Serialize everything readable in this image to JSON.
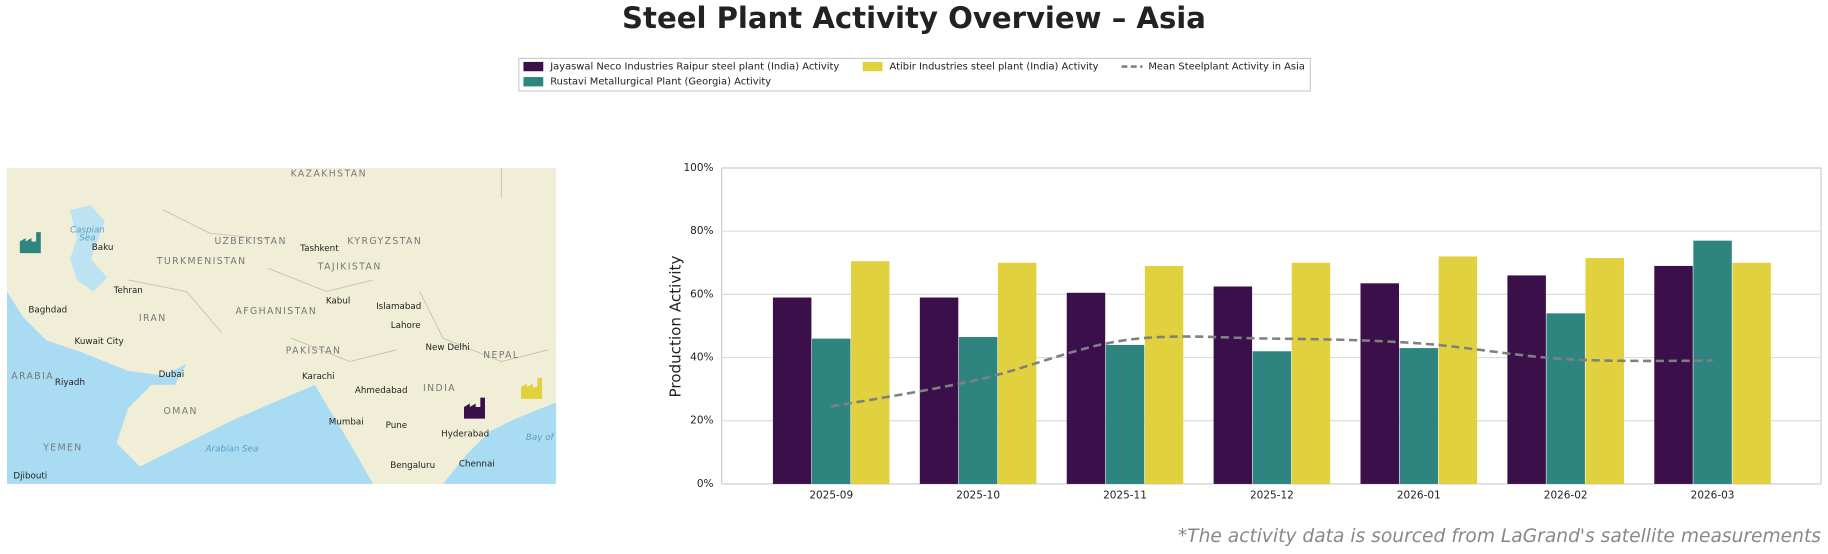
{
  "chart_data": {
    "type": "bar",
    "title": "Steel Plant Activity Overview – Asia",
    "y_label": "Production Activity",
    "categories": [
      "2025-09",
      "2025-10",
      "2025-11",
      "2025-12",
      "2026-01",
      "2026-02",
      "2026-03"
    ],
    "series": [
      {
        "name": "Jayaswal Neco Industries Raipur steel plant (India) Activity",
        "color": "#3b0f4a",
        "values": [
          59,
          59,
          60.5,
          62.5,
          63.5,
          66,
          69
        ]
      },
      {
        "name": "Rustavi Metallurgical Plant (Georgia) Activity",
        "color": "#2e8580",
        "values": [
          46,
          46.5,
          44,
          42,
          43,
          54,
          77
        ]
      },
      {
        "name": "Atibir Industries steel plant (India) Activity",
        "color": "#e1d13f",
        "values": [
          70.5,
          70,
          69,
          70,
          72,
          71.5,
          70
        ]
      },
      {
        "name": "Mean Steelplant Activity in Asia",
        "type": "line",
        "color": "#808080",
        "dashed": true,
        "values": [
          24.5,
          33,
          45.5,
          46,
          44.5,
          39.5,
          39
        ]
      }
    ],
    "ylim": [
      0,
      100
    ],
    "yticks": [
      {
        "value": 0,
        "label": "0%"
      },
      {
        "value": 20,
        "label": "20%"
      },
      {
        "value": 40,
        "label": "40%"
      },
      {
        "value": 60,
        "label": "60%"
      },
      {
        "value": 80,
        "label": "80%"
      },
      {
        "value": 100,
        "label": "100%"
      }
    ],
    "grid": true,
    "footnote": "*The activity data is sourced from LaGrand's satellite measurements"
  },
  "map": {
    "labels": [
      "KAZAKHSTAN",
      "Caspian",
      "Sea",
      "UZBEKISTAN",
      "Tashkent",
      "KYRGYZSTAN",
      "TURKMENISTAN",
      "TAJIKISTAN",
      "Baku",
      "Tehran",
      "Kabul",
      "Islamabad",
      "AFGHANISTAN",
      "IRAN",
      "Baghdad",
      "Lahore",
      "Kuwait City",
      "New Delhi",
      "PAKISTAN",
      "NEPAL",
      "ARABIA",
      "Riyadh",
      "Dubai",
      "Karachi",
      "Ahmedabad",
      "INDIA",
      "OMAN",
      "Mumbai",
      "Pune",
      "Hyderabad",
      "YEMEN",
      "Arabian Sea",
      "Bay of",
      "Bengaluru",
      "Chennai",
      "Djibouti"
    ]
  }
}
